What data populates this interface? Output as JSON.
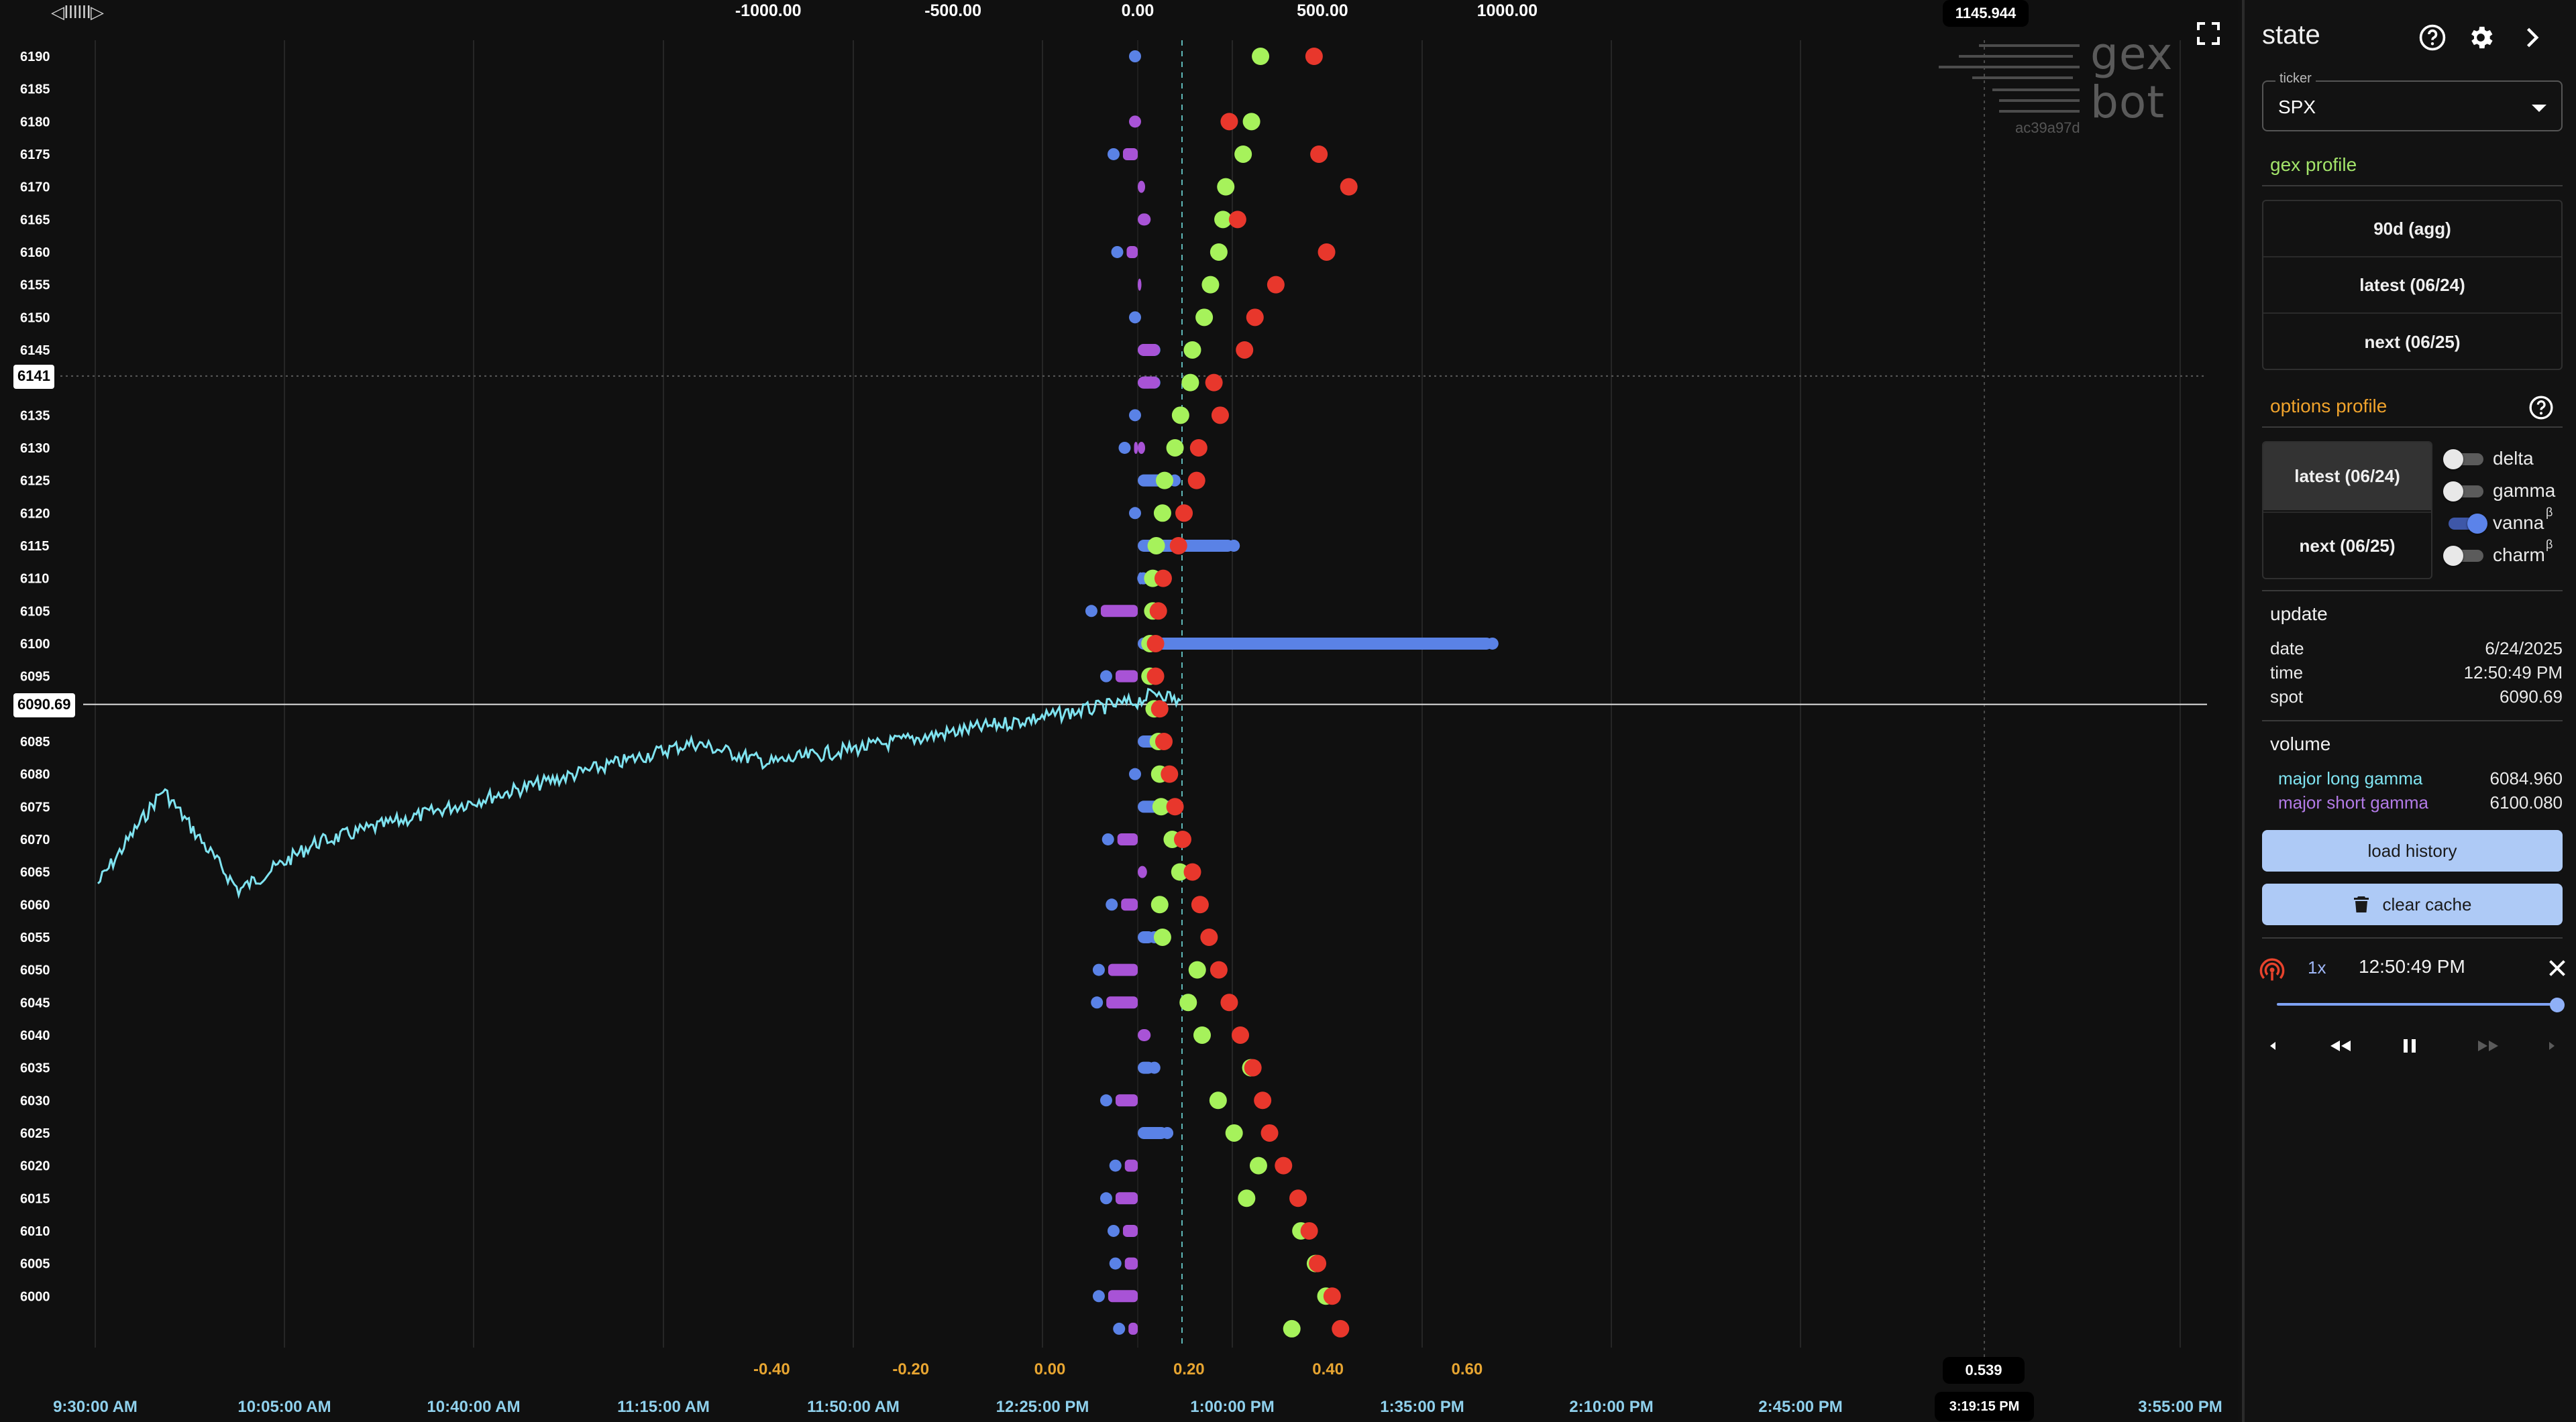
{
  "chart": {
    "top_axis_ticks": [
      {
        "label": "-1000.00",
        "v": -1000
      },
      {
        "label": "-500.00",
        "v": -500
      },
      {
        "label": "0.00",
        "v": 0
      },
      {
        "label": "500.00",
        "v": 500
      },
      {
        "label": "1000.00",
        "v": 1000
      }
    ],
    "top_axis_max_badge": "1145.944",
    "bottom_axis_ticks": [
      {
        "label": "-0.40",
        "v": -0.4
      },
      {
        "label": "-0.20",
        "v": -0.2
      },
      {
        "label": "0.00",
        "v": 0
      },
      {
        "label": "0.20",
        "v": 0.2
      },
      {
        "label": "0.40",
        "v": 0.4
      },
      {
        "label": "0.60",
        "v": 0.6
      }
    ],
    "bottom_axis_badge": "0.539",
    "time_ticks": [
      "9:30:00 AM",
      "10:05:00 AM",
      "10:40:00 AM",
      "11:15:00 AM",
      "11:50:00 AM",
      "12:25:00 PM",
      "1:00:00 PM",
      "1:35:00 PM",
      "2:10:00 PM",
      "2:45:00 PM",
      "3:55:00 PM"
    ],
    "time_cursor_badge": "3:19:15 PM",
    "strikes": [
      "6190",
      "6185",
      "6180",
      "6175",
      "6170",
      "6165",
      "6160",
      "6155",
      "6150",
      "6145",
      "6140",
      "6135",
      "6130",
      "6125",
      "6120",
      "6115",
      "6110",
      "6105",
      "6100",
      "6095",
      "6090",
      "6085",
      "6080",
      "6075",
      "6070",
      "6065",
      "6060",
      "6055",
      "6050",
      "6045",
      "6040",
      "6035",
      "6030",
      "6025",
      "6020",
      "6015",
      "6010",
      "6005",
      "6000"
    ],
    "cursor_price_label": "6141",
    "spot_price_label": "6090.69",
    "colors": {
      "green": "#a6f25b",
      "red": "#e8372c",
      "blue": "#5a82e6",
      "purple": "#a853d6",
      "price": "#7fe3f0"
    }
  },
  "chart_data": {
    "type": "scatter",
    "top_axis_range": [
      -1500,
      1450
    ],
    "bottom_axis_range": [
      -0.6,
      0.68
    ],
    "profile_bars": [
      [
        6190,
        0,
        0,
        0
      ],
      [
        6180,
        0,
        0,
        0
      ],
      [
        6175,
        0,
        -40,
        0
      ],
      [
        6170,
        0,
        0,
        20
      ],
      [
        6165,
        0,
        0,
        35
      ],
      [
        6160,
        0,
        -30,
        0
      ],
      [
        6155,
        0,
        0,
        10
      ],
      [
        6150,
        0,
        0,
        0
      ],
      [
        6145,
        45,
        0,
        60
      ],
      [
        6140,
        45,
        0,
        60
      ],
      [
        6135,
        0,
        0,
        0
      ],
      [
        6130,
        0,
        -10,
        20
      ],
      [
        6125,
        100,
        0,
        0
      ],
      [
        6120,
        0,
        0,
        0
      ],
      [
        6115,
        260,
        0,
        0
      ],
      [
        6110,
        15,
        0,
        0
      ],
      [
        6105,
        0,
        -100,
        0
      ],
      [
        6100,
        960,
        0,
        0
      ],
      [
        6095,
        0,
        -60,
        0
      ],
      [
        6085,
        70,
        0,
        0
      ],
      [
        6080,
        0,
        0,
        0
      ],
      [
        6075,
        105,
        0,
        0
      ],
      [
        6070,
        0,
        -55,
        0
      ],
      [
        6065,
        0,
        0,
        25
      ],
      [
        6060,
        0,
        -45,
        0
      ],
      [
        6055,
        45,
        0,
        0
      ],
      [
        6050,
        0,
        -80,
        0
      ],
      [
        6045,
        0,
        -85,
        0
      ],
      [
        6040,
        0,
        0,
        35
      ],
      [
        6035,
        45,
        0,
        0
      ],
      [
        6030,
        0,
        -60,
        0
      ],
      [
        6025,
        80,
        0,
        0
      ],
      [
        6020,
        0,
        -35,
        0
      ],
      [
        6015,
        0,
        -60,
        0
      ],
      [
        6010,
        0,
        -40,
        0
      ],
      [
        6005,
        0,
        -35,
        0
      ],
      [
        6000,
        0,
        -80,
        0
      ],
      [
        5995,
        0,
        -25,
        0
      ]
    ],
    "green_points": [
      [
        6190,
        0.303
      ],
      [
        6180,
        0.29
      ],
      [
        6175,
        0.278
      ],
      [
        6170,
        0.253
      ],
      [
        6165,
        0.249
      ],
      [
        6160,
        0.243
      ],
      [
        6155,
        0.231
      ],
      [
        6150,
        0.222
      ],
      [
        6145,
        0.205
      ],
      [
        6140,
        0.202
      ],
      [
        6135,
        0.188
      ],
      [
        6130,
        0.18
      ],
      [
        6125,
        0.165
      ],
      [
        6120,
        0.162
      ],
      [
        6115,
        0.153
      ],
      [
        6110,
        0.148
      ],
      [
        6105,
        0.148
      ],
      [
        6100,
        0.144
      ],
      [
        6095,
        0.144
      ],
      [
        6090,
        0.15
      ],
      [
        6085,
        0.156
      ],
      [
        6080,
        0.158
      ],
      [
        6075,
        0.16
      ],
      [
        6070,
        0.176
      ],
      [
        6065,
        0.187
      ],
      [
        6060,
        0.158
      ],
      [
        6055,
        0.162
      ],
      [
        6050,
        0.212
      ],
      [
        6045,
        0.199
      ],
      [
        6040,
        0.219
      ],
      [
        6035,
        0.289
      ],
      [
        6030,
        0.242
      ],
      [
        6025,
        0.265
      ],
      [
        6020,
        0.3
      ],
      [
        6015,
        0.283
      ],
      [
        6010,
        0.361
      ],
      [
        6005,
        0.382
      ],
      [
        6000,
        0.397
      ],
      [
        5995,
        0.348
      ]
    ],
    "red_points": [
      [
        6190,
        0.38
      ],
      [
        6180,
        0.258
      ],
      [
        6175,
        0.387
      ],
      [
        6170,
        0.43
      ],
      [
        6165,
        0.27
      ],
      [
        6160,
        0.398
      ],
      [
        6155,
        0.325
      ],
      [
        6150,
        0.295
      ],
      [
        6145,
        0.28
      ],
      [
        6140,
        0.236
      ],
      [
        6135,
        0.245
      ],
      [
        6130,
        0.214
      ],
      [
        6125,
        0.211
      ],
      [
        6120,
        0.193
      ],
      [
        6115,
        0.185
      ],
      [
        6110,
        0.163
      ],
      [
        6105,
        0.156
      ],
      [
        6100,
        0.152
      ],
      [
        6095,
        0.152
      ],
      [
        6090,
        0.158
      ],
      [
        6085,
        0.164
      ],
      [
        6080,
        0.172
      ],
      [
        6075,
        0.18
      ],
      [
        6070,
        0.191
      ],
      [
        6065,
        0.205
      ],
      [
        6060,
        0.216
      ],
      [
        6055,
        0.229
      ],
      [
        6050,
        0.243
      ],
      [
        6045,
        0.258
      ],
      [
        6040,
        0.274
      ],
      [
        6035,
        0.292
      ],
      [
        6030,
        0.306
      ],
      [
        6025,
        0.316
      ],
      [
        6020,
        0.336
      ],
      [
        6015,
        0.357
      ],
      [
        6010,
        0.373
      ],
      [
        6005,
        0.385
      ],
      [
        6000,
        0.406
      ],
      [
        5995,
        0.418
      ]
    ]
  },
  "watermark": {
    "line1": "gex",
    "line2": "bot",
    "hash": "ac39a97d"
  },
  "sidebar": {
    "title": "state",
    "ticker_label": "ticker",
    "ticker_value": "SPX",
    "gex_profile_title": "gex profile",
    "gex_buttons": [
      "90d (agg)",
      "latest (06/24)",
      "next (06/25)"
    ],
    "options_profile_title": "options profile",
    "option_buttons": [
      "latest (06/24)",
      "next (06/25)"
    ],
    "toggles": [
      {
        "label": "delta",
        "on": false,
        "sup": ""
      },
      {
        "label": "gamma",
        "on": false,
        "sup": ""
      },
      {
        "label": "vanna",
        "on": true,
        "sup": "β"
      },
      {
        "label": "charm",
        "on": false,
        "sup": "β"
      }
    ],
    "update_title": "update",
    "update": {
      "date_k": "date",
      "date_v": "6/24/2025",
      "time_k": "time",
      "time_v": "12:50:49 PM",
      "spot_k": "spot",
      "spot_v": "6090.69"
    },
    "volume_title": "volume",
    "volume": {
      "long_k": "major long gamma",
      "long_v": "6084.960",
      "short_k": "major short gamma",
      "short_v": "6100.080"
    },
    "load_history": "load history",
    "clear_cache": "clear cache",
    "player": {
      "speed": "1x",
      "time": "12:50:49 PM",
      "progress": 1.0
    },
    "colors": {
      "green": "#a3e46a",
      "orange": "#f0a32c",
      "cyan": "#7fe3f0",
      "purple": "#b27ae6"
    }
  }
}
